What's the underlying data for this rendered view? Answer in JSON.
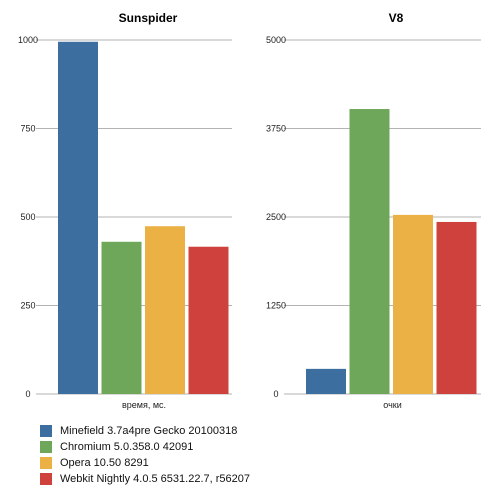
{
  "chart_data": [
    {
      "type": "bar",
      "title": "Sunspider",
      "xlabel": "время, мс.",
      "ylabel": "",
      "ylim": [
        0,
        1000
      ],
      "yticks": [
        "0",
        "250",
        "500",
        "750",
        "1000"
      ],
      "categories": [
        "время, мс."
      ],
      "series": [
        {
          "name": "Minefield 3.7a4pre Gecko 20100318",
          "values": [
            995
          ]
        },
        {
          "name": "Chromium 5.0.358.0 42091",
          "values": [
            430
          ]
        },
        {
          "name": "Opera 10.50 8291",
          "values": [
            474
          ]
        },
        {
          "name": "Webkit Nightly 4.0.5 6531.22.7, r56207",
          "values": [
            416
          ]
        }
      ],
      "grid": true
    },
    {
      "type": "bar",
      "title": "V8",
      "xlabel": "очки",
      "ylabel": "",
      "ylim": [
        0,
        5000
      ],
      "yticks": [
        "0",
        "1250",
        "2500",
        "3750",
        "5000"
      ],
      "categories": [
        "очки"
      ],
      "series": [
        {
          "name": "Minefield 3.7a4pre Gecko 20100318",
          "values": [
            355
          ]
        },
        {
          "name": "Chromium 5.0.358.0 42091",
          "values": [
            4025
          ]
        },
        {
          "name": "Opera 10.50 8291",
          "values": [
            2530
          ]
        },
        {
          "name": "Webkit Nightly 4.0.5 6531.22.7, r56207",
          "values": [
            2430
          ]
        }
      ],
      "grid": true
    }
  ],
  "legend": {
    "placement": "bottom",
    "items": [
      {
        "label": "Minefield 3.7a4pre Gecko 20100318",
        "color": "#3c6ea0"
      },
      {
        "label": "Chromium 5.0.358.0 42091",
        "color": "#6ea75a"
      },
      {
        "label": "Opera 10.50 8291",
        "color": "#ecb144"
      },
      {
        "label": "Webkit Nightly 4.0.5 6531.22.7, r56207",
        "color": "#cf413c"
      }
    ]
  }
}
